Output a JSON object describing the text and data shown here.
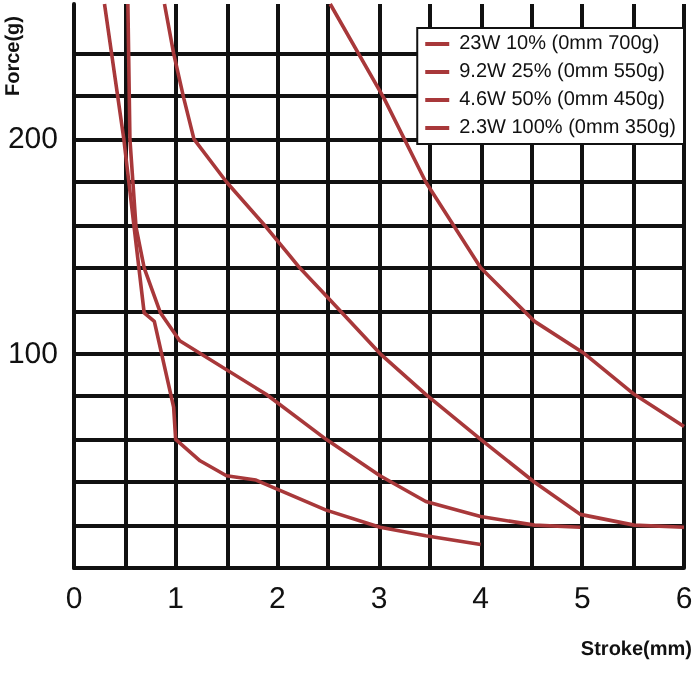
{
  "chart_data": {
    "type": "line",
    "xlabel": "Stroke(mm)",
    "ylabel": "Force(g)",
    "xlim": [
      0,
      6
    ],
    "ylim": [
      0,
      263
    ],
    "xticks": [
      0,
      {
        "value": 0.5,
        "label": null
      },
      1,
      {
        "value": 1.5,
        "label": null
      },
      2,
      {
        "value": 2.5,
        "label": null
      },
      3,
      {
        "value": 3.5,
        "label": null
      },
      4,
      {
        "value": 4.5,
        "label": null
      },
      5,
      {
        "value": 5.5,
        "label": null
      },
      6
    ],
    "yticks": [
      {
        "value": 0,
        "label": null
      },
      {
        "value": 20,
        "label": null
      },
      {
        "value": 40,
        "label": null
      },
      {
        "value": 60,
        "label": null
      },
      {
        "value": 80,
        "label": null
      },
      100,
      {
        "value": 120,
        "label": null
      },
      {
        "value": 140,
        "label": null
      },
      {
        "value": 160,
        "label": null
      },
      {
        "value": 180,
        "label": null
      },
      200,
      {
        "value": 220,
        "label": null
      },
      {
        "value": 240,
        "label": null
      }
    ],
    "grid": true,
    "legend": "top right",
    "marker": "none",
    "line_style": "solid",
    "series": [
      {
        "name": "23W 10% (0mm 700g)",
        "color": "#a8383a",
        "x": [
          2.52,
          3.05,
          3.46,
          4.0,
          4.53,
          5.02,
          5.51,
          6.0
        ],
        "values": [
          263,
          219,
          180,
          140,
          115,
          100,
          81,
          66
        ]
      },
      {
        "name": "9.2W 25% (0mm 550g)",
        "color": "#a8383a",
        "x": [
          0.89,
          0.98,
          1.08,
          1.18,
          1.5,
          1.89,
          2.22,
          2.48,
          3.01,
          3.46,
          4.0,
          4.53,
          4.98,
          5.51,
          6.0
        ],
        "values": [
          263,
          240,
          219,
          200,
          180,
          159,
          140,
          127,
          100,
          81,
          60,
          40,
          25,
          20,
          19
        ]
      },
      {
        "name": "4.6W 50% (0mm 450g)",
        "color": "#a8383a",
        "x": [
          0.53,
          0.55,
          0.61,
          0.69,
          0.85,
          1.04,
          1.89,
          2.48,
          3.01,
          3.46,
          4.0,
          4.53,
          4.98
        ],
        "values": [
          263,
          200,
          159,
          140,
          119,
          106,
          81,
          60,
          43,
          31,
          24,
          20,
          19
        ]
      },
      {
        "name": "2.3W 100% (0mm 350g)",
        "color": "#a8383a",
        "x": [
          0.3,
          0.49,
          0.69,
          0.79,
          0.98,
          1.0,
          1.24,
          1.5,
          1.79,
          2.48,
          3.01,
          3.46,
          4.0
        ],
        "values": [
          263,
          200,
          119,
          115,
          75,
          60,
          50,
          43,
          41,
          27,
          19,
          15,
          11
        ]
      }
    ]
  }
}
